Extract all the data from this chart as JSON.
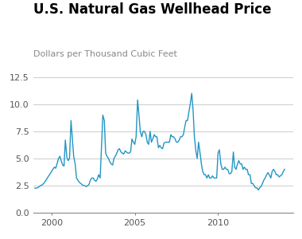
{
  "title": "U.S. Natural Gas Wellhead Price",
  "subtitle": "Dollars per Thousand Cubic Feet",
  "title_color": "#000000",
  "subtitle_color": "#888888",
  "line_color": "#2196c4",
  "background_color": "#ffffff",
  "grid_color": "#cccccc",
  "ylim": [
    0.0,
    13.0
  ],
  "yticks": [
    0.0,
    2.5,
    5.0,
    7.5,
    10.0,
    12.5
  ],
  "xlim_start": 1998.9,
  "xlim_end": 2014.5,
  "xticks": [
    2000,
    2005,
    2010
  ],
  "years": [
    1999.0,
    1999.08,
    1999.17,
    1999.25,
    1999.33,
    1999.42,
    1999.5,
    1999.58,
    1999.67,
    1999.75,
    1999.83,
    1999.92,
    2000.0,
    2000.08,
    2000.17,
    2000.25,
    2000.33,
    2000.42,
    2000.5,
    2000.58,
    2000.67,
    2000.75,
    2000.83,
    2000.92,
    2001.0,
    2001.08,
    2001.17,
    2001.25,
    2001.33,
    2001.42,
    2001.5,
    2001.58,
    2001.67,
    2001.75,
    2001.83,
    2001.92,
    2002.0,
    2002.08,
    2002.17,
    2002.25,
    2002.33,
    2002.42,
    2002.5,
    2002.58,
    2002.67,
    2002.75,
    2002.83,
    2002.92,
    2003.0,
    2003.08,
    2003.17,
    2003.25,
    2003.33,
    2003.42,
    2003.5,
    2003.58,
    2003.67,
    2003.75,
    2003.83,
    2003.92,
    2004.0,
    2004.08,
    2004.17,
    2004.25,
    2004.33,
    2004.42,
    2004.5,
    2004.58,
    2004.67,
    2004.75,
    2004.83,
    2004.92,
    2005.0,
    2005.08,
    2005.17,
    2005.25,
    2005.33,
    2005.42,
    2005.5,
    2005.58,
    2005.67,
    2005.75,
    2005.83,
    2005.92,
    2006.0,
    2006.08,
    2006.17,
    2006.25,
    2006.33,
    2006.42,
    2006.5,
    2006.58,
    2006.67,
    2006.75,
    2006.83,
    2006.92,
    2007.0,
    2007.08,
    2007.17,
    2007.25,
    2007.33,
    2007.42,
    2007.5,
    2007.58,
    2007.67,
    2007.75,
    2007.83,
    2007.92,
    2008.0,
    2008.08,
    2008.17,
    2008.25,
    2008.33,
    2008.42,
    2008.5,
    2008.58,
    2008.67,
    2008.75,
    2008.83,
    2008.92,
    2009.0,
    2009.08,
    2009.17,
    2009.25,
    2009.33,
    2009.42,
    2009.5,
    2009.58,
    2009.67,
    2009.75,
    2009.83,
    2009.92,
    2010.0,
    2010.08,
    2010.17,
    2010.25,
    2010.33,
    2010.42,
    2010.5,
    2010.58,
    2010.67,
    2010.75,
    2010.83,
    2010.92,
    2011.0,
    2011.08,
    2011.17,
    2011.25,
    2011.33,
    2011.42,
    2011.5,
    2011.58,
    2011.67,
    2011.75,
    2011.83,
    2011.92,
    2012.0,
    2012.08,
    2012.17,
    2012.25,
    2012.33,
    2012.42,
    2012.5,
    2012.58,
    2012.67,
    2012.75,
    2012.83,
    2012.92,
    2013.0,
    2013.08,
    2013.17,
    2013.25,
    2013.33,
    2013.42,
    2013.5,
    2013.58,
    2013.67,
    2013.75,
    2013.83,
    2013.92,
    2014.0
  ],
  "values": [
    2.27,
    2.27,
    2.3,
    2.4,
    2.5,
    2.55,
    2.65,
    2.8,
    3.0,
    3.2,
    3.4,
    3.6,
    3.8,
    4.0,
    4.2,
    4.1,
    4.5,
    5.0,
    5.2,
    4.8,
    4.4,
    4.3,
    6.7,
    5.1,
    4.8,
    5.0,
    8.5,
    6.8,
    5.2,
    4.5,
    3.2,
    3.0,
    2.8,
    2.7,
    2.6,
    2.5,
    2.5,
    2.4,
    2.5,
    2.6,
    3.0,
    3.2,
    3.2,
    3.0,
    2.9,
    3.1,
    3.5,
    3.2,
    6.0,
    9.0,
    8.5,
    5.5,
    5.2,
    5.0,
    4.7,
    4.5,
    4.4,
    5.0,
    5.2,
    5.5,
    5.8,
    5.9,
    5.6,
    5.5,
    5.4,
    5.7,
    5.6,
    5.5,
    5.5,
    5.6,
    6.8,
    6.5,
    6.3,
    7.0,
    10.4,
    9.0,
    7.5,
    7.0,
    7.5,
    7.5,
    7.2,
    6.5,
    6.3,
    7.5,
    6.5,
    6.8,
    7.2,
    7.0,
    7.0,
    6.0,
    6.2,
    6.0,
    5.9,
    6.4,
    6.5,
    6.5,
    6.5,
    6.5,
    7.2,
    7.0,
    7.0,
    6.8,
    6.5,
    6.5,
    6.7,
    7.0,
    7.0,
    7.2,
    7.9,
    8.5,
    8.5,
    9.3,
    10.0,
    11.0,
    9.5,
    7.0,
    5.7,
    5.0,
    6.5,
    5.5,
    4.5,
    3.8,
    3.5,
    3.5,
    3.2,
    3.5,
    3.2,
    3.2,
    3.4,
    3.2,
    3.2,
    3.2,
    5.5,
    5.8,
    4.5,
    4.0,
    4.0,
    4.2,
    4.0,
    4.0,
    3.6,
    3.6,
    3.8,
    5.6,
    4.2,
    4.0,
    4.5,
    4.8,
    4.5,
    4.5,
    4.0,
    4.2,
    4.0,
    4.0,
    3.5,
    3.5,
    2.7,
    2.7,
    2.5,
    2.3,
    2.3,
    2.1,
    2.3,
    2.4,
    2.7,
    3.0,
    3.2,
    3.5,
    3.7,
    3.5,
    3.2,
    3.8,
    4.0,
    3.8,
    3.5,
    3.5,
    3.3,
    3.4,
    3.5,
    3.8,
    4.0
  ],
  "title_fontsize": 12,
  "subtitle_fontsize": 8,
  "tick_fontsize": 8
}
